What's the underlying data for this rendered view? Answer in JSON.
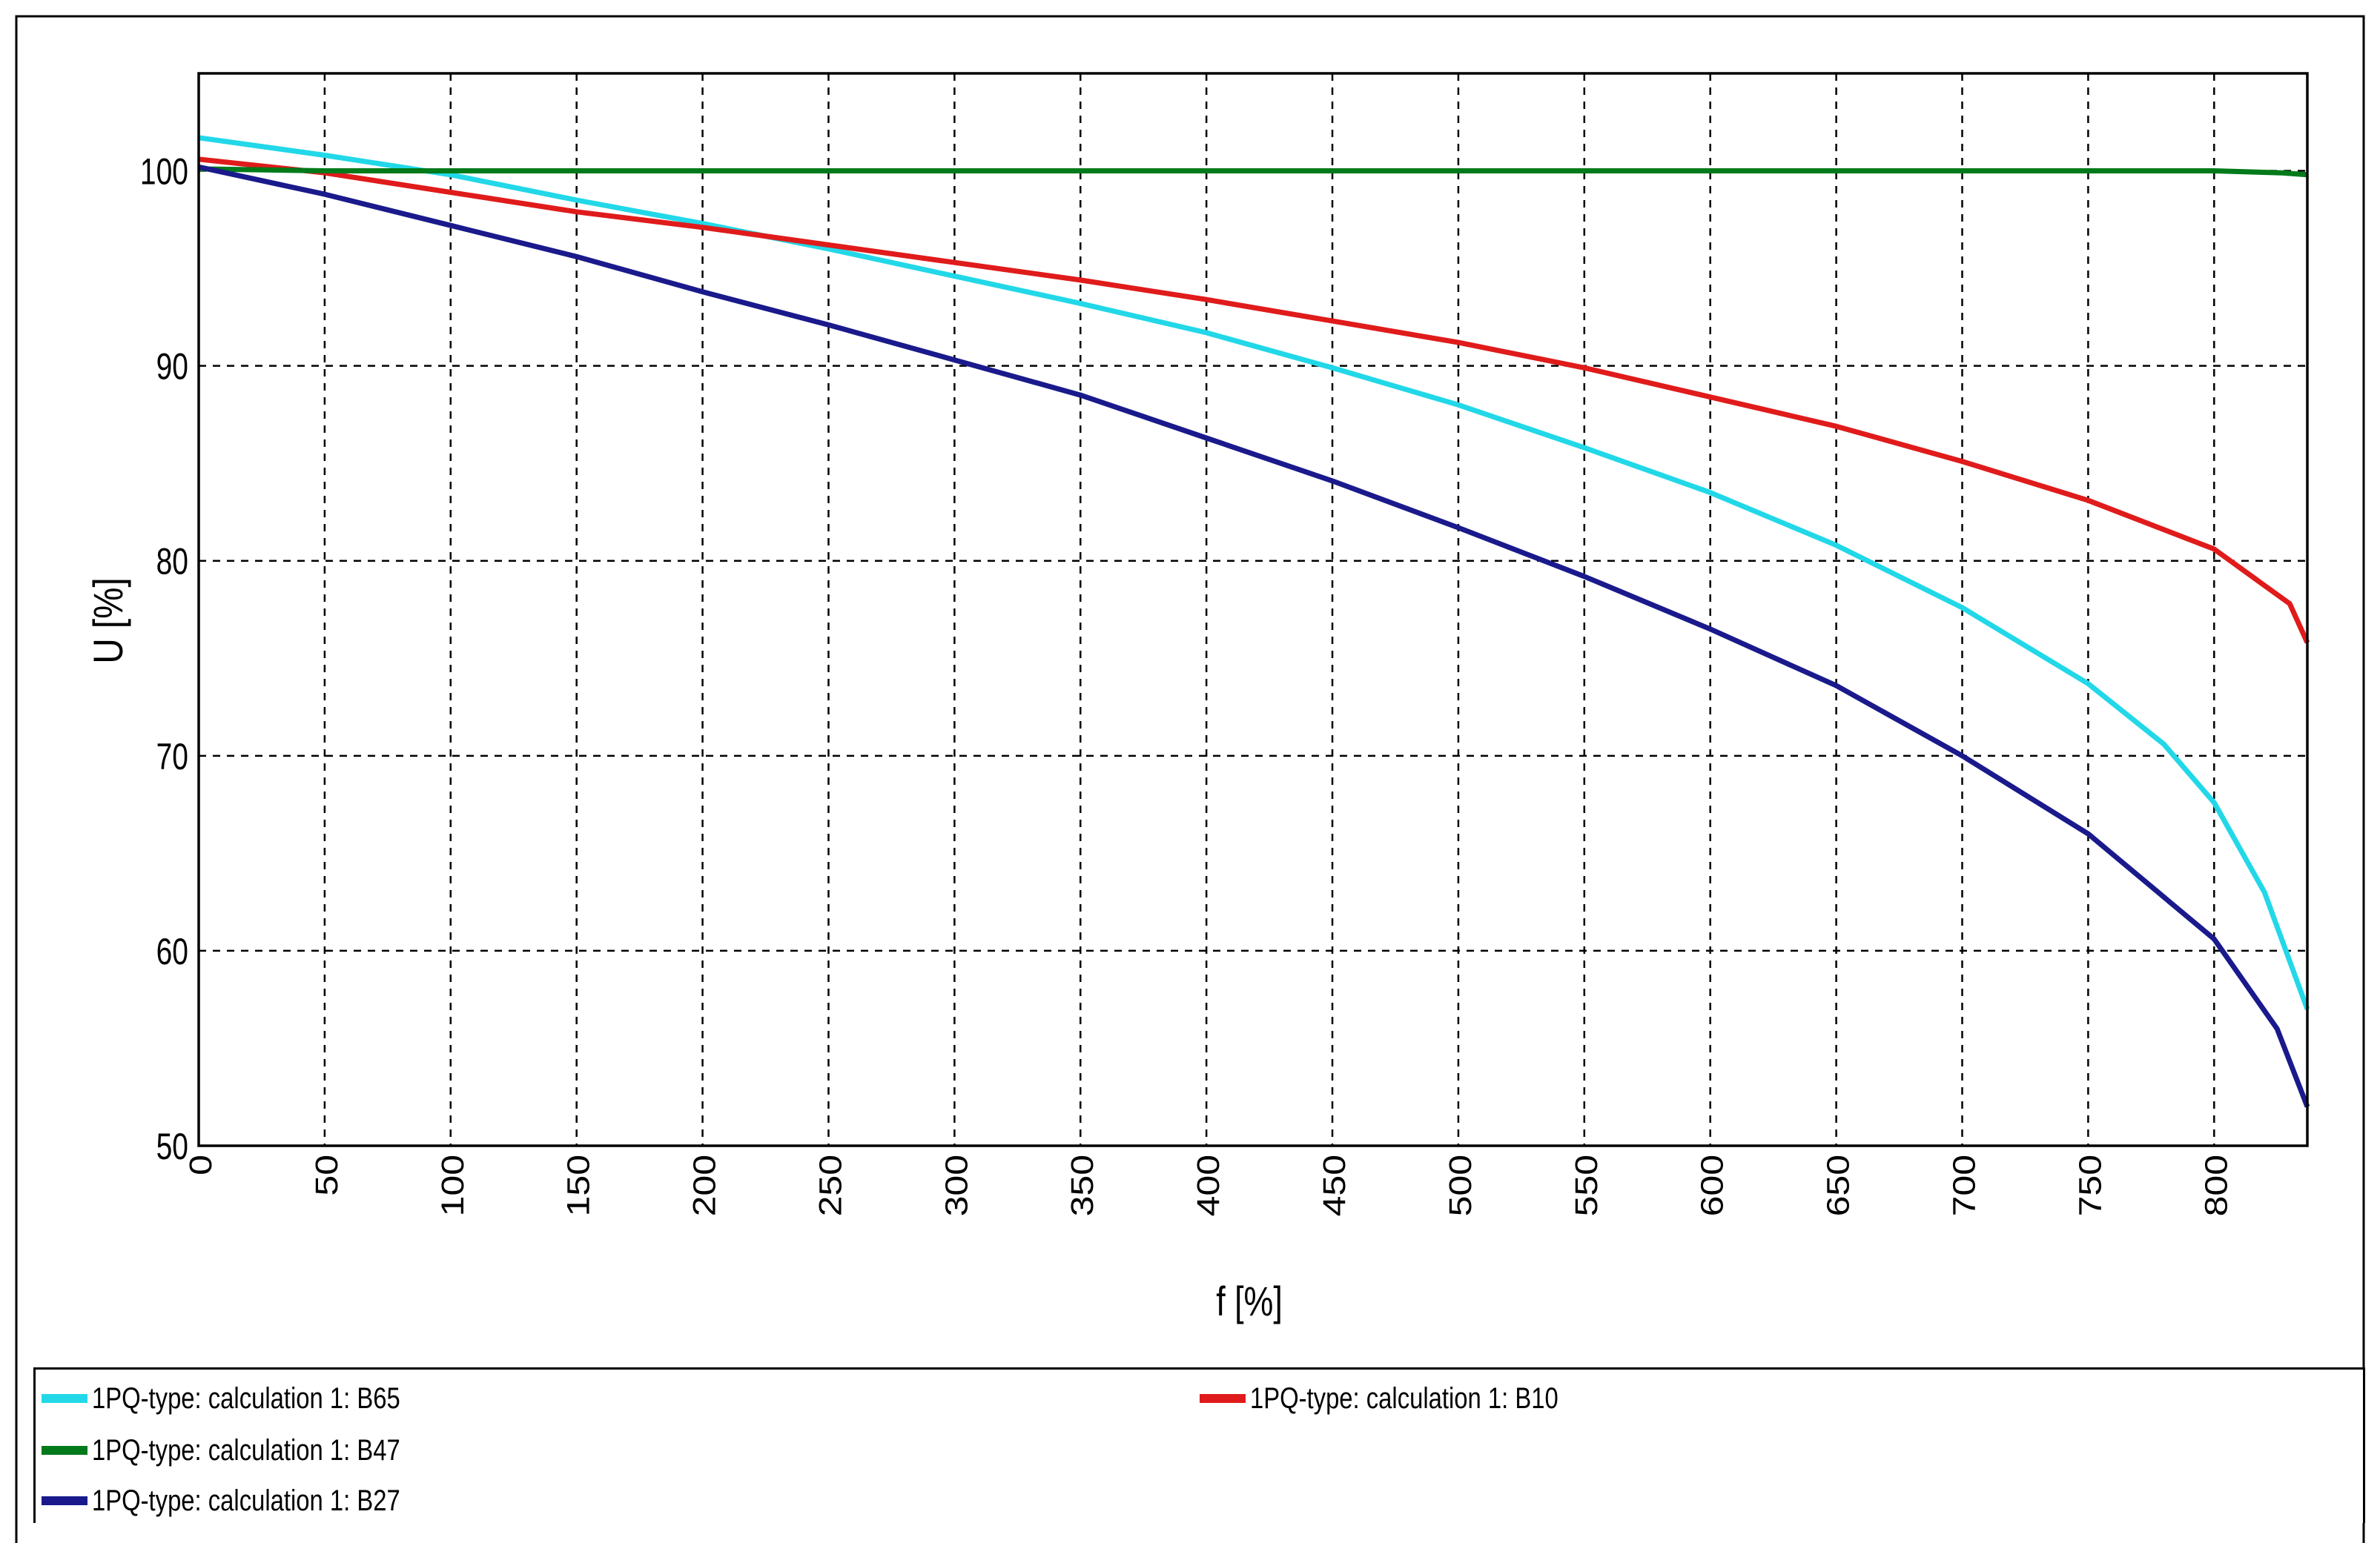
{
  "chart_data": {
    "type": "line",
    "xlabel": "f [%]",
    "ylabel": "U [%]",
    "xlim": [
      0,
      837
    ],
    "ylim": [
      50,
      105
    ],
    "xticks": [
      0,
      50,
      100,
      150,
      200,
      250,
      300,
      350,
      400,
      450,
      500,
      550,
      600,
      650,
      700,
      750,
      800
    ],
    "yticks": [
      50,
      60,
      70,
      80,
      90,
      100
    ],
    "grid": true,
    "legend_placement": "bottom",
    "series": [
      {
        "name": "1PQ-type: calculation 1: B65",
        "color": "#22d8e8",
        "x": [
          0,
          50,
          100,
          150,
          200,
          250,
          300,
          350,
          400,
          450,
          500,
          550,
          600,
          650,
          700,
          750,
          780,
          800,
          820,
          837
        ],
        "y": [
          101.7,
          100.8,
          99.8,
          98.5,
          97.3,
          96.0,
          94.6,
          93.2,
          91.7,
          89.9,
          88.0,
          85.8,
          83.5,
          80.8,
          77.6,
          73.7,
          70.6,
          67.6,
          63.0,
          57.0
        ]
      },
      {
        "name": "1PQ-type: calculation 1: B10",
        "color": "#e01b1b",
        "x": [
          0,
          50,
          100,
          150,
          200,
          250,
          300,
          350,
          400,
          450,
          500,
          550,
          600,
          650,
          700,
          750,
          800,
          830,
          837
        ],
        "y": [
          100.6,
          99.9,
          98.9,
          97.9,
          97.1,
          96.2,
          95.3,
          94.4,
          93.4,
          92.3,
          91.2,
          89.9,
          88.4,
          86.9,
          85.1,
          83.1,
          80.6,
          77.8,
          75.8
        ]
      },
      {
        "name": "1PQ-type: calculation 1: B47",
        "color": "#007a1a",
        "x": [
          0,
          50,
          100,
          200,
          300,
          400,
          500,
          600,
          700,
          800,
          827,
          837
        ],
        "y": [
          100.1,
          100.0,
          100.0,
          100.0,
          100.0,
          100.0,
          100.0,
          100.0,
          100.0,
          100.0,
          99.9,
          99.8
        ]
      },
      {
        "name": "1PQ-type: calculation 1: B27",
        "color": "#1a1a8c",
        "x": [
          0,
          50,
          100,
          150,
          200,
          250,
          300,
          350,
          400,
          450,
          500,
          550,
          600,
          650,
          700,
          750,
          800,
          825,
          837
        ],
        "y": [
          100.2,
          98.8,
          97.2,
          95.6,
          93.8,
          92.1,
          90.3,
          88.5,
          86.3,
          84.1,
          81.7,
          79.2,
          76.5,
          73.6,
          70.0,
          66.0,
          60.6,
          56.0,
          52.0
        ]
      }
    ]
  }
}
